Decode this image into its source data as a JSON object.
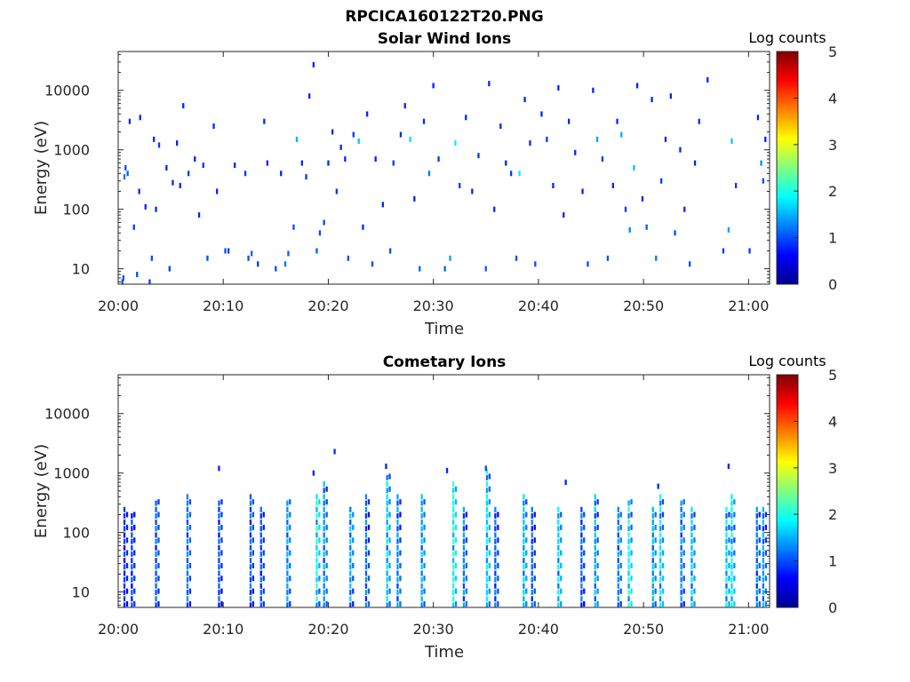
{
  "figure": {
    "filename": "RPCICA160122T20.PNG"
  },
  "chart_data": [
    {
      "type": "heatmap",
      "title": "Solar Wind Ions",
      "xlabel": "Time",
      "ylabel": "Energy (eV)",
      "y_scale": "log",
      "ylim": [
        5.5,
        45000
      ],
      "xlim": [
        "20:00",
        "21:02"
      ],
      "x_ticks": [
        "20:00",
        "20:10",
        "20:20",
        "20:30",
        "20:40",
        "20:50",
        "21:00"
      ],
      "y_ticks": [
        "10",
        "100",
        "1000",
        "10000"
      ],
      "colorbar": {
        "label": "Log counts",
        "min": 0,
        "max": 5,
        "ticks": [
          "0",
          "1",
          "2",
          "3",
          "4",
          "5"
        ],
        "colormap": "jet"
      },
      "grid": false,
      "cells": [
        {
          "t": 0.3,
          "e": 6,
          "c": 1.0
        },
        {
          "t": 0.4,
          "e": 7,
          "c": 1.0
        },
        {
          "t": 0.5,
          "e": 350,
          "c": 1.2
        },
        {
          "t": 0.6,
          "e": 500,
          "c": 1.0
        },
        {
          "t": 0.8,
          "e": 400,
          "c": 1.1
        },
        {
          "t": 1.0,
          "e": 3000,
          "c": 0.8
        },
        {
          "t": 1.4,
          "e": 50,
          "c": 0.9
        },
        {
          "t": 1.7,
          "e": 8,
          "c": 1.0
        },
        {
          "t": 1.9,
          "e": 200,
          "c": 0.8
        },
        {
          "t": 2.0,
          "e": 3500,
          "c": 0.8
        },
        {
          "t": 2.5,
          "e": 110,
          "c": 0.8
        },
        {
          "t": 2.9,
          "e": 6,
          "c": 0.9
        },
        {
          "t": 3.1,
          "e": 15,
          "c": 1.0
        },
        {
          "t": 3.3,
          "e": 1500,
          "c": 0.8
        },
        {
          "t": 3.5,
          "e": 100,
          "c": 0.8
        },
        {
          "t": 3.8,
          "e": 1200,
          "c": 0.9
        },
        {
          "t": 4.5,
          "e": 500,
          "c": 0.8
        },
        {
          "t": 4.8,
          "e": 10,
          "c": 0.9
        },
        {
          "t": 5.1,
          "e": 280,
          "c": 0.8
        },
        {
          "t": 5.5,
          "e": 1300,
          "c": 0.8
        },
        {
          "t": 5.8,
          "e": 250,
          "c": 0.8
        },
        {
          "t": 6.1,
          "e": 5500,
          "c": 0.8
        },
        {
          "t": 6.6,
          "e": 400,
          "c": 0.9
        },
        {
          "t": 7.2,
          "e": 700,
          "c": 0.8
        },
        {
          "t": 7.6,
          "e": 80,
          "c": 0.8
        },
        {
          "t": 8.0,
          "e": 550,
          "c": 0.9
        },
        {
          "t": 8.4,
          "e": 15,
          "c": 1.0
        },
        {
          "t": 9.0,
          "e": 2500,
          "c": 0.8
        },
        {
          "t": 9.3,
          "e": 200,
          "c": 0.8
        },
        {
          "t": 10.1,
          "e": 20,
          "c": 1.0
        },
        {
          "t": 10.4,
          "e": 20,
          "c": 0.9
        },
        {
          "t": 11.0,
          "e": 550,
          "c": 0.8
        },
        {
          "t": 12.0,
          "e": 400,
          "c": 0.9
        },
        {
          "t": 12.3,
          "e": 15,
          "c": 1.0
        },
        {
          "t": 12.6,
          "e": 18,
          "c": 1.1
        },
        {
          "t": 13.2,
          "e": 12,
          "c": 0.9
        },
        {
          "t": 13.8,
          "e": 3000,
          "c": 0.8
        },
        {
          "t": 14.1,
          "e": 600,
          "c": 0.8
        },
        {
          "t": 14.9,
          "e": 10,
          "c": 1.0
        },
        {
          "t": 15.4,
          "e": 400,
          "c": 0.8
        },
        {
          "t": 15.8,
          "e": 12,
          "c": 1.2
        },
        {
          "t": 16.1,
          "e": 18,
          "c": 1.1
        },
        {
          "t": 16.6,
          "e": 50,
          "c": 1.0
        },
        {
          "t": 16.9,
          "e": 1500,
          "c": 1.5
        },
        {
          "t": 17.4,
          "e": 600,
          "c": 0.8
        },
        {
          "t": 17.8,
          "e": 350,
          "c": 0.9
        },
        {
          "t": 18.1,
          "e": 8000,
          "c": 0.8
        },
        {
          "t": 18.5,
          "e": 27000,
          "c": 0.8
        },
        {
          "t": 18.8,
          "e": 20,
          "c": 1.1
        },
        {
          "t": 19.1,
          "e": 40,
          "c": 1.0
        },
        {
          "t": 19.5,
          "e": 60,
          "c": 1.0
        },
        {
          "t": 19.9,
          "e": 600,
          "c": 0.8
        },
        {
          "t": 20.3,
          "e": 2000,
          "c": 0.8
        },
        {
          "t": 20.7,
          "e": 200,
          "c": 0.9
        },
        {
          "t": 21.1,
          "e": 1100,
          "c": 0.8
        },
        {
          "t": 21.5,
          "e": 700,
          "c": 0.8
        },
        {
          "t": 21.8,
          "e": 15,
          "c": 1.0
        },
        {
          "t": 22.3,
          "e": 1800,
          "c": 0.9
        },
        {
          "t": 22.8,
          "e": 1400,
          "c": 1.6
        },
        {
          "t": 23.2,
          "e": 50,
          "c": 0.8
        },
        {
          "t": 23.6,
          "e": 4000,
          "c": 0.8
        },
        {
          "t": 24.1,
          "e": 12,
          "c": 1.0
        },
        {
          "t": 24.4,
          "e": 700,
          "c": 0.8
        },
        {
          "t": 25.1,
          "e": 120,
          "c": 0.8
        },
        {
          "t": 25.8,
          "e": 20,
          "c": 1.0
        },
        {
          "t": 26.1,
          "e": 600,
          "c": 0.9
        },
        {
          "t": 26.8,
          "e": 1800,
          "c": 0.8
        },
        {
          "t": 27.2,
          "e": 5500,
          "c": 0.8
        },
        {
          "t": 27.7,
          "e": 1500,
          "c": 1.7
        },
        {
          "t": 28.1,
          "e": 150,
          "c": 0.8
        },
        {
          "t": 28.6,
          "e": 10,
          "c": 1.1
        },
        {
          "t": 29.0,
          "e": 3000,
          "c": 0.8
        },
        {
          "t": 29.5,
          "e": 400,
          "c": 1.2
        },
        {
          "t": 29.9,
          "e": 12000,
          "c": 0.8
        },
        {
          "t": 30.4,
          "e": 700,
          "c": 0.9
        },
        {
          "t": 31.0,
          "e": 10,
          "c": 1.1
        },
        {
          "t": 31.5,
          "e": 15,
          "c": 1.4
        },
        {
          "t": 32.0,
          "e": 1300,
          "c": 1.8
        },
        {
          "t": 32.4,
          "e": 250,
          "c": 0.9
        },
        {
          "t": 33.0,
          "e": 3500,
          "c": 0.8
        },
        {
          "t": 33.6,
          "e": 200,
          "c": 0.8
        },
        {
          "t": 34.2,
          "e": 800,
          "c": 0.9
        },
        {
          "t": 34.9,
          "e": 10,
          "c": 1.1
        },
        {
          "t": 35.2,
          "e": 13000,
          "c": 0.8
        },
        {
          "t": 35.7,
          "e": 100,
          "c": 0.8
        },
        {
          "t": 36.3,
          "e": 2500,
          "c": 0.8
        },
        {
          "t": 36.8,
          "e": 600,
          "c": 0.8
        },
        {
          "t": 37.3,
          "e": 400,
          "c": 0.9
        },
        {
          "t": 37.8,
          "e": 15,
          "c": 1.0
        },
        {
          "t": 38.1,
          "e": 400,
          "c": 1.8
        },
        {
          "t": 38.6,
          "e": 7000,
          "c": 0.8
        },
        {
          "t": 39.1,
          "e": 1300,
          "c": 0.8
        },
        {
          "t": 39.6,
          "e": 12,
          "c": 1.0
        },
        {
          "t": 40.2,
          "e": 4000,
          "c": 0.8
        },
        {
          "t": 40.7,
          "e": 1500,
          "c": 0.9
        },
        {
          "t": 41.3,
          "e": 250,
          "c": 0.8
        },
        {
          "t": 41.8,
          "e": 11000,
          "c": 0.8
        },
        {
          "t": 42.3,
          "e": 80,
          "c": 0.8
        },
        {
          "t": 42.8,
          "e": 3000,
          "c": 0.8
        },
        {
          "t": 43.4,
          "e": 900,
          "c": 0.8
        },
        {
          "t": 44.1,
          "e": 200,
          "c": 0.8
        },
        {
          "t": 44.6,
          "e": 12,
          "c": 1.0
        },
        {
          "t": 45.1,
          "e": 10000,
          "c": 0.8
        },
        {
          "t": 45.5,
          "e": 1500,
          "c": 1.4
        },
        {
          "t": 46.0,
          "e": 700,
          "c": 0.9
        },
        {
          "t": 46.5,
          "e": 15,
          "c": 1.0
        },
        {
          "t": 47.0,
          "e": 250,
          "c": 0.8
        },
        {
          "t": 47.4,
          "e": 3000,
          "c": 0.8
        },
        {
          "t": 47.8,
          "e": 1800,
          "c": 1.5
        },
        {
          "t": 48.2,
          "e": 100,
          "c": 0.9
        },
        {
          "t": 48.6,
          "e": 45,
          "c": 1.3
        },
        {
          "t": 49.0,
          "e": 500,
          "c": 1.6
        },
        {
          "t": 49.3,
          "e": 12000,
          "c": 0.8
        },
        {
          "t": 49.8,
          "e": 150,
          "c": 0.8
        },
        {
          "t": 50.2,
          "e": 50,
          "c": 1.1
        },
        {
          "t": 50.7,
          "e": 7000,
          "c": 0.8
        },
        {
          "t": 51.1,
          "e": 15,
          "c": 1.2
        },
        {
          "t": 51.6,
          "e": 300,
          "c": 0.9
        },
        {
          "t": 52.0,
          "e": 1500,
          "c": 0.8
        },
        {
          "t": 52.5,
          "e": 8000,
          "c": 0.8
        },
        {
          "t": 52.9,
          "e": 40,
          "c": 1.0
        },
        {
          "t": 53.4,
          "e": 1000,
          "c": 0.8
        },
        {
          "t": 53.8,
          "e": 100,
          "c": 0.8
        },
        {
          "t": 54.3,
          "e": 12,
          "c": 1.0
        },
        {
          "t": 54.8,
          "e": 600,
          "c": 0.8
        },
        {
          "t": 55.2,
          "e": 3000,
          "c": 0.8
        },
        {
          "t": 56.0,
          "e": 15000,
          "c": 0.8
        },
        {
          "t": 57.5,
          "e": 20,
          "c": 0.9
        },
        {
          "t": 58.0,
          "e": 45,
          "c": 1.4
        },
        {
          "t": 58.3,
          "e": 1400,
          "c": 1.6
        },
        {
          "t": 58.7,
          "e": 250,
          "c": 0.9
        },
        {
          "t": 60.0,
          "e": 20,
          "c": 0.9
        },
        {
          "t": 60.8,
          "e": 3500,
          "c": 0.8
        },
        {
          "t": 61.1,
          "e": 600,
          "c": 1.3
        },
        {
          "t": 61.3,
          "e": 300,
          "c": 1.0
        },
        {
          "t": 61.5,
          "e": 1500,
          "c": 0.8
        }
      ]
    },
    {
      "type": "heatmap",
      "title": "Cometary Ions",
      "xlabel": "Time",
      "ylabel": "Energy (eV)",
      "y_scale": "log",
      "ylim": [
        5.5,
        45000
      ],
      "xlim": [
        "20:00",
        "21:02"
      ],
      "x_ticks": [
        "20:00",
        "20:10",
        "20:20",
        "20:30",
        "20:40",
        "20:50",
        "21:00"
      ],
      "y_ticks": [
        "10",
        "100",
        "1000",
        "10000"
      ],
      "colorbar": {
        "label": "Log counts",
        "min": 0,
        "max": 5,
        "ticks": [
          "0",
          "1",
          "2",
          "3",
          "4",
          "5"
        ],
        "colormap": "jet"
      },
      "grid": false,
      "bursts": [
        {
          "t": 0.5,
          "emax": 300,
          "c": 1.0
        },
        {
          "t": 1.2,
          "emax": 200,
          "c": 1.1
        },
        {
          "t": 3.5,
          "emax": 350,
          "c": 1.3
        },
        {
          "t": 6.5,
          "emax": 400,
          "c": 1.4
        },
        {
          "t": 9.5,
          "emax": 350,
          "c": 1.2
        },
        {
          "t": 12.5,
          "emax": 400,
          "c": 1.3
        },
        {
          "t": 13.5,
          "emax": 300,
          "c": 1.2
        },
        {
          "t": 16.0,
          "emax": 350,
          "c": 1.6
        },
        {
          "t": 18.8,
          "emax": 500,
          "c": 2.2
        },
        {
          "t": 19.5,
          "emax": 700,
          "c": 1.6
        },
        {
          "t": 22.0,
          "emax": 300,
          "c": 1.7
        },
        {
          "t": 23.5,
          "emax": 400,
          "c": 1.4
        },
        {
          "t": 25.5,
          "emax": 900,
          "c": 1.9
        },
        {
          "t": 26.5,
          "emax": 400,
          "c": 1.5
        },
        {
          "t": 28.8,
          "emax": 500,
          "c": 1.7
        },
        {
          "t": 31.8,
          "emax": 700,
          "c": 2.3
        },
        {
          "t": 32.8,
          "emax": 300,
          "c": 1.5
        },
        {
          "t": 35.0,
          "emax": 1100,
          "c": 2.0
        },
        {
          "t": 35.8,
          "emax": 300,
          "c": 1.3
        },
        {
          "t": 38.5,
          "emax": 400,
          "c": 1.8
        },
        {
          "t": 39.3,
          "emax": 300,
          "c": 1.3
        },
        {
          "t": 41.8,
          "emax": 300,
          "c": 1.9
        },
        {
          "t": 44.0,
          "emax": 300,
          "c": 1.3
        },
        {
          "t": 45.3,
          "emax": 500,
          "c": 1.7
        },
        {
          "t": 47.5,
          "emax": 300,
          "c": 1.5
        },
        {
          "t": 48.5,
          "emax": 350,
          "c": 2.2
        },
        {
          "t": 50.8,
          "emax": 300,
          "c": 1.7
        },
        {
          "t": 51.5,
          "emax": 400,
          "c": 2.0
        },
        {
          "t": 53.5,
          "emax": 350,
          "c": 1.5
        },
        {
          "t": 54.5,
          "emax": 300,
          "c": 1.8
        },
        {
          "t": 57.8,
          "emax": 300,
          "c": 1.9
        },
        {
          "t": 58.3,
          "emax": 500,
          "c": 2.1
        },
        {
          "t": 60.7,
          "emax": 300,
          "c": 1.4
        },
        {
          "t": 61.3,
          "emax": 250,
          "c": 1.6
        }
      ],
      "scattered": [
        {
          "t": 9.5,
          "e": 1200,
          "c": 0.8
        },
        {
          "t": 18.5,
          "e": 1000,
          "c": 0.8
        },
        {
          "t": 20.5,
          "e": 2300,
          "c": 0.8
        },
        {
          "t": 25.4,
          "e": 1300,
          "c": 0.8
        },
        {
          "t": 31.2,
          "e": 1100,
          "c": 0.8
        },
        {
          "t": 34.9,
          "e": 1200,
          "c": 1.0
        },
        {
          "t": 42.5,
          "e": 700,
          "c": 0.8
        },
        {
          "t": 51.3,
          "e": 600,
          "c": 0.8
        },
        {
          "t": 58.0,
          "e": 1300,
          "c": 0.8
        }
      ]
    }
  ]
}
